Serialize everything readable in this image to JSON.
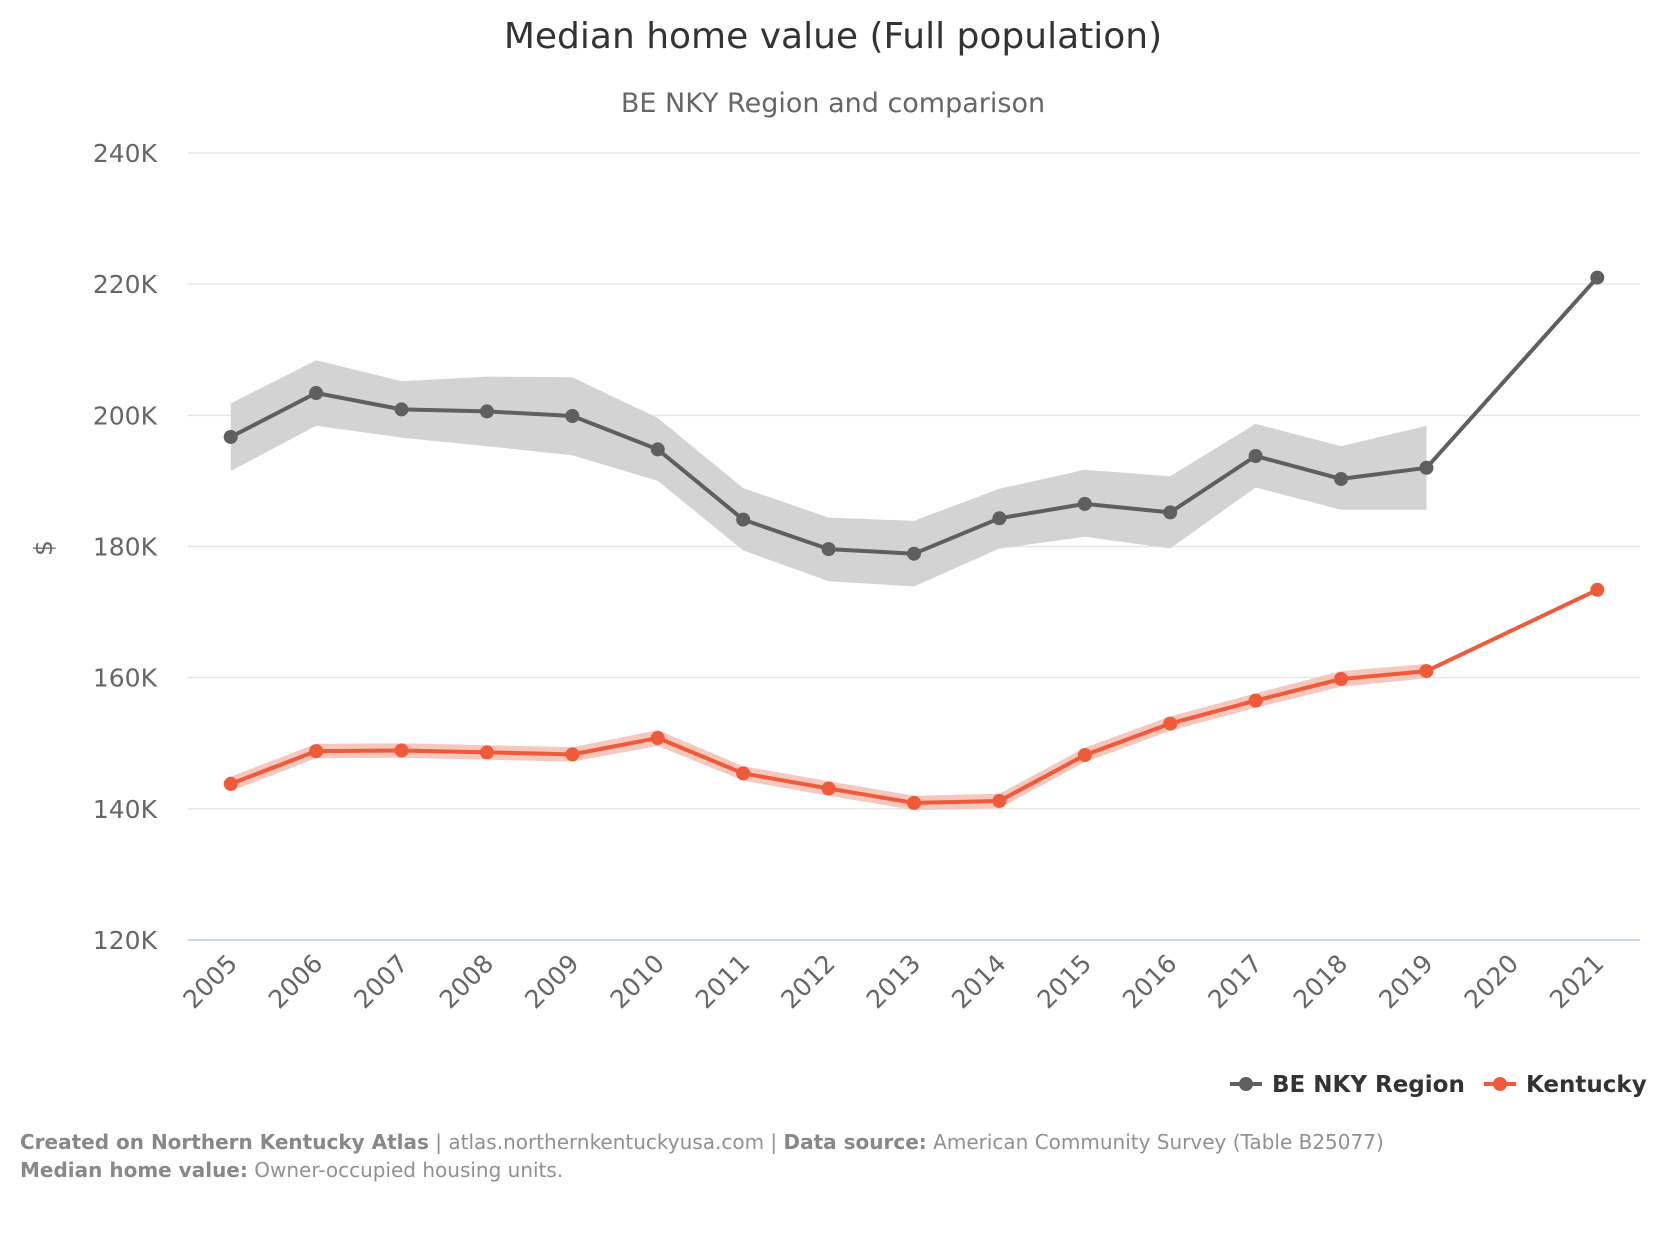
{
  "chart_data": {
    "type": "line",
    "title": "Median home value (Full population)",
    "subtitle": "BE NKY Region and comparison",
    "ylabel": "$",
    "xlabel": "",
    "ylim": [
      120000,
      240000
    ],
    "yticks": [
      120000,
      140000,
      160000,
      180000,
      200000,
      220000,
      240000
    ],
    "ytick_labels": [
      "120K",
      "140K",
      "160K",
      "180K",
      "200K",
      "220K",
      "240K"
    ],
    "categories": [
      "2005",
      "2006",
      "2007",
      "2008",
      "2009",
      "2010",
      "2011",
      "2012",
      "2013",
      "2014",
      "2015",
      "2016",
      "2017",
      "2018",
      "2019",
      "2020",
      "2021"
    ],
    "grid": true,
    "legend_position": "bottom-right",
    "series": [
      {
        "name": "BE NKY Region",
        "color": "#5f5f5f",
        "band_color": "#d3d3d3",
        "values": [
          196700,
          203400,
          200900,
          200600,
          199900,
          194800,
          184100,
          179600,
          178900,
          184300,
          186500,
          185200,
          193800,
          190300,
          192000,
          null,
          221000
        ],
        "lower": [
          191500,
          198400,
          196600,
          195300,
          193900,
          190000,
          179400,
          174700,
          173900,
          179700,
          181500,
          179700,
          189000,
          185600,
          185600,
          null,
          null
        ],
        "upper": [
          201800,
          208400,
          205200,
          205900,
          205800,
          199600,
          188900,
          184400,
          183900,
          188800,
          191700,
          190700,
          198700,
          195300,
          198400,
          null,
          null
        ]
      },
      {
        "name": "Kentucky",
        "color": "#ee5a3a",
        "band_color": "#f5c1b5",
        "values": [
          143800,
          148800,
          148900,
          148600,
          148300,
          150800,
          145400,
          143100,
          140900,
          141200,
          148200,
          153000,
          156500,
          159800,
          161000,
          null,
          173400
        ],
        "lower": [
          142700,
          147700,
          147800,
          147500,
          147200,
          149600,
          144300,
          142000,
          139800,
          140100,
          147100,
          151900,
          155400,
          158600,
          159900,
          null,
          null
        ],
        "upper": [
          144900,
          149900,
          150000,
          149700,
          149400,
          152000,
          146500,
          144200,
          142000,
          142300,
          149300,
          154100,
          157600,
          161000,
          162100,
          null,
          null
        ]
      }
    ]
  },
  "footer": {
    "created_label": "Created on Northern Kentucky Atlas",
    "separator": " | ",
    "site": "atlas.northernkentuckyusa.com",
    "source_label": "Data source:",
    "source_value": " American Community Survey (Table B25077)",
    "note_label": "Median home value:",
    "note_value": " Owner-occupied housing units."
  }
}
